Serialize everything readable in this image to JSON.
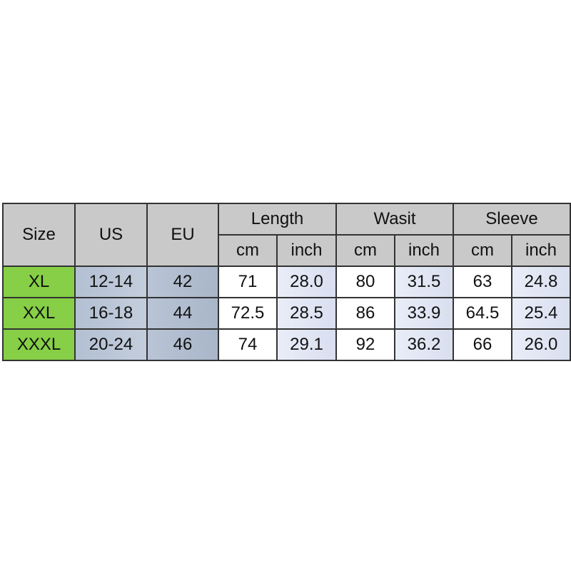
{
  "header": {
    "size": "Size",
    "us": "US",
    "eu": "EU",
    "groups": [
      "Length",
      "Wasit",
      "Sleeve"
    ],
    "units": [
      "cm",
      "inch",
      "cm",
      "inch",
      "cm",
      "inch"
    ]
  },
  "rows": [
    {
      "size": "XL",
      "us": "12-14",
      "eu": "42",
      "values": [
        "71",
        "28.0",
        "80",
        "31.5",
        "63",
        "24.8"
      ]
    },
    {
      "size": "XXL",
      "us": "16-18",
      "eu": "44",
      "values": [
        "72.5",
        "28.5",
        "86",
        "33.9",
        "64.5",
        "25.4"
      ]
    },
    {
      "size": "XXXL",
      "us": "20-24",
      "eu": "46",
      "values": [
        "74",
        "29.1",
        "92",
        "36.2",
        "66",
        "26.0"
      ]
    }
  ],
  "colors": {
    "size_cell": "#86cf46",
    "header": "#c9c9c9",
    "us_eu": "#b3c0d3",
    "inch": "#dde3f2"
  }
}
